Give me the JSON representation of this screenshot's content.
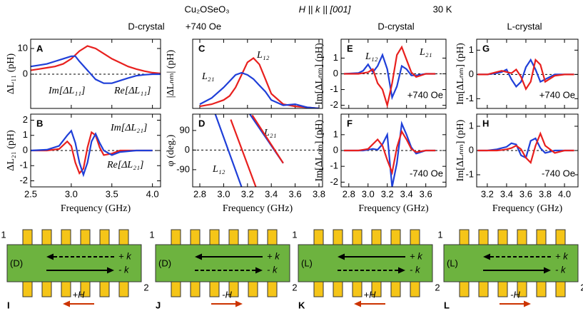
{
  "header": {
    "material": "Cu₂OSeO₃",
    "geometry": "H || k || [001]",
    "temperature": "30 K",
    "left_crystal": "D-crystal",
    "left_field": "+740 Oe",
    "middle_crystal": "D-crystal",
    "right_crystal": "L-crystal"
  },
  "chart_data": [
    {
      "type": "line",
      "label": "A",
      "ylabel": "ΔL₁₁ (pH)",
      "xlim": [
        2.5,
        4.1
      ],
      "ylim": [
        -13.3,
        13.6
      ],
      "xticks": [
        2.5,
        {
          "value": 3,
          "label": "3.0"
        },
        3.5,
        {
          "value": 4,
          "label": "4.0"
        }
      ],
      "xtick_labels": false,
      "yticks": [
        0,
        10
      ],
      "zero_line": true,
      "x": [
        2.5,
        2.6,
        2.7,
        2.8,
        2.9,
        3.0,
        3.05,
        3.1,
        3.2,
        3.3,
        3.4,
        3.5,
        3.6,
        3.7,
        3.8,
        3.9,
        4.0,
        4.1
      ],
      "series": [
        {
          "name": "Im[ΔL₁₁]",
          "color": "#e8201e",
          "values": [
            1.5,
            2,
            2.5,
            3,
            4,
            6,
            7.5,
            9,
            11,
            10,
            8,
            6,
            4.5,
            3,
            2,
            1.2,
            0.6,
            0.3
          ]
        },
        {
          "name": "Re[ΔL₁₁]",
          "color": "#1f3fd8",
          "values": [
            3,
            3.5,
            4,
            5,
            6,
            7,
            7,
            5,
            1.5,
            -2,
            -3.5,
            -3.5,
            -2.5,
            -1.5,
            -0.6,
            -0.2,
            0,
            0
          ]
        }
      ]
    },
    {
      "type": "line",
      "label": "B",
      "ylabel": "ΔL₂₁ (pH)",
      "xlabel": "Frequency (GHz)",
      "xlim": [
        2.5,
        4.1
      ],
      "ylim": [
        -2.4,
        2.4
      ],
      "xticks": [
        2.5,
        {
          "value": 3,
          "label": "3.0"
        },
        3.5,
        {
          "value": 4,
          "label": "4.0"
        }
      ],
      "xtick_labels": true,
      "yticks": [
        -2,
        -1,
        0,
        1,
        2
      ],
      "zero_line": true,
      "x": [
        2.5,
        2.7,
        2.85,
        2.95,
        3.0,
        3.05,
        3.1,
        3.15,
        3.2,
        3.25,
        3.3,
        3.35,
        3.4,
        3.5,
        3.6,
        3.8,
        4.0
      ],
      "series": [
        {
          "name": "Im[ΔL₂₁]",
          "color": "#e8201e",
          "values": [
            0,
            0,
            0.1,
            0.6,
            0.3,
            -0.8,
            -1.5,
            -1.2,
            0.2,
            1.2,
            1.0,
            0.2,
            -0.3,
            -0.2,
            0,
            0,
            0
          ]
        },
        {
          "name": "Re[ΔL₂₁]",
          "color": "#1f3fd8",
          "values": [
            0,
            0.05,
            0.3,
            1.0,
            1.3,
            0.5,
            -0.8,
            -1.6,
            -0.8,
            0.6,
            1.1,
            0.5,
            0,
            -0.3,
            -0.1,
            0,
            0
          ]
        }
      ]
    },
    {
      "type": "line",
      "label": "C",
      "ylabel": "|ΔLₙₘ| (pH)",
      "xlim": [
        2.74,
        3.83
      ],
      "ylim": [
        0,
        3.3
      ],
      "xticks": [
        2.8,
        {
          "value": 3,
          "label": "3.0"
        },
        3.2,
        3.4,
        3.6,
        3.8
      ],
      "xtick_labels": false,
      "zero_line": false,
      "x": [
        2.8,
        2.9,
        3.0,
        3.05,
        3.1,
        3.15,
        3.2,
        3.25,
        3.3,
        3.35,
        3.4,
        3.5,
        3.6,
        3.7,
        3.8
      ],
      "series": [
        {
          "name": "L₁₂",
          "color": "#e8201e",
          "values": [
            0.1,
            0.2,
            0.4,
            0.6,
            1.0,
            1.6,
            2.2,
            2.4,
            2.1,
            1.4,
            0.7,
            0.2,
            0.1,
            0.05,
            0
          ]
        },
        {
          "name": "L₂₁",
          "color": "#1f3fd8",
          "values": [
            0.2,
            0.5,
            1.0,
            1.3,
            1.6,
            1.7,
            1.6,
            1.4,
            1.1,
            0.8,
            0.4,
            0.15,
            0.2,
            0.05,
            0
          ]
        }
      ]
    },
    {
      "type": "line",
      "label": "D",
      "ylabel": "φ (deg.)",
      "xlabel": "Frequency (GHz)",
      "xlim": [
        2.74,
        3.83
      ],
      "ylim": [
        -169,
        165
      ],
      "xticks": [
        2.8,
        {
          "value": 3,
          "label": "3.0"
        },
        3.2,
        3.4,
        3.6,
        3.8
      ],
      "xtick_labels": true,
      "yticks": [
        -90,
        0,
        90
      ],
      "zero_line": true,
      "series": [
        {
          "name": "L₂₁",
          "color": "#1f3fd8",
          "x": [
            2.93,
            3.15,
            3.18,
            3.22,
            3.5
          ],
          "values": [
            165,
            -169,
            null,
            165,
            -60
          ]
        },
        {
          "name": "L₁₂",
          "color": "#e8201e",
          "x": [
            3.06,
            3.27,
            3.25,
            3.24,
            3.5
          ],
          "values": [
            140,
            -169,
            null,
            160,
            -60
          ]
        }
      ]
    },
    {
      "type": "line",
      "label": "E",
      "ylabel": "Im[ΔLₙₘ] (pH)",
      "annotation": "+740 Oe",
      "xlim": [
        2.72,
        3.81
      ],
      "ylim": [
        -2.2,
        2.2
      ],
      "xticks": [
        2.8,
        {
          "value": 3,
          "label": "3.0"
        },
        3.2,
        3.4,
        3.6
      ],
      "xtick_labels": false,
      "yticks": [
        -2,
        -1,
        0,
        1
      ],
      "zero_line": true,
      "x": [
        2.75,
        2.9,
        2.95,
        3.0,
        3.05,
        3.1,
        3.15,
        3.2,
        3.25,
        3.3,
        3.35,
        3.4,
        3.45,
        3.5,
        3.6,
        3.7
      ],
      "series": [
        {
          "name": "L₂₁",
          "color": "#1f3fd8",
          "values": [
            0,
            0.05,
            0.2,
            0.6,
            0.1,
            0.5,
            1.2,
            0.3,
            -1.5,
            -0.8,
            0.5,
            0.3,
            -0.1,
            -0.1,
            0,
            0
          ]
        },
        {
          "name": "L₁₂",
          "color": "#e8201e",
          "values": [
            0,
            0,
            0.05,
            0.1,
            0.3,
            -0.6,
            -1.0,
            -2.0,
            -0.6,
            1.2,
            1.7,
            0.9,
            0.1,
            -0.2,
            0,
            0
          ]
        }
      ]
    },
    {
      "type": "line",
      "ylabel": "Im[ΔLₙₘ] (pH)",
      "label": "F",
      "annotation": "-740 Oe",
      "xlabel": "Frequency (GHz)",
      "xlim": [
        2.72,
        3.81
      ],
      "ylim": [
        -2.3,
        2.3
      ],
      "xticks": [
        2.8,
        {
          "value": 3,
          "label": "3.0"
        },
        3.2,
        3.4,
        3.6
      ],
      "xtick_labels": true,
      "yticks": [
        -2,
        -1,
        0,
        1
      ],
      "zero_line": true,
      "x": [
        2.75,
        2.9,
        2.95,
        3.0,
        3.05,
        3.1,
        3.15,
        3.2,
        3.25,
        3.3,
        3.35,
        3.4,
        3.45,
        3.5,
        3.6,
        3.7
      ],
      "series": [
        {
          "color": "#1f3fd8",
          "values": [
            0,
            0,
            0,
            0.05,
            0.1,
            0.05,
            0.4,
            1.0,
            -2.3,
            -0.8,
            1.7,
            1.0,
            0.2,
            -0.2,
            0,
            0
          ]
        },
        {
          "color": "#e8201e",
          "values": [
            0,
            0,
            0.05,
            0.1,
            0.4,
            0.7,
            0.3,
            -0.6,
            -1.4,
            0.2,
            1.2,
            0.7,
            0.1,
            -0.1,
            0,
            0
          ]
        }
      ]
    },
    {
      "type": "line",
      "label": "G",
      "ylabel": "Im[ΔLₙₘ] (pH)",
      "annotation": "+740 Oe",
      "xlim": [
        3.09,
        4.14
      ],
      "ylim": [
        -1.4,
        1.45
      ],
      "xticks": [
        3.2,
        3.4,
        3.6,
        3.8,
        {
          "value": 4,
          "label": "4.0"
        }
      ],
      "xtick_labels": false,
      "yticks": [
        -1,
        0,
        1
      ],
      "zero_line": true,
      "x": [
        3.1,
        3.2,
        3.3,
        3.35,
        3.4,
        3.45,
        3.5,
        3.55,
        3.6,
        3.65,
        3.7,
        3.75,
        3.8,
        3.9,
        4.0,
        4.1
      ],
      "series": [
        {
          "color": "#1f3fd8",
          "values": [
            0,
            0,
            0.05,
            0.1,
            0.2,
            -0.2,
            -0.5,
            -0.3,
            0.3,
            0.6,
            0.2,
            -0.3,
            -0.2,
            0,
            0,
            0
          ]
        },
        {
          "color": "#e8201e",
          "values": [
            0,
            0,
            0.1,
            0.15,
            0.1,
            0.05,
            0.2,
            -0.1,
            -0.6,
            -0.3,
            0.6,
            0.4,
            -0.3,
            -0.05,
            0,
            0
          ]
        }
      ]
    },
    {
      "type": "line",
      "label": "H",
      "ylabel": "Im[ΔLₙₘ] (pH)",
      "annotation": "-740 Oe",
      "xlabel": "Frequency (GHz)",
      "xlim": [
        3.09,
        4.14
      ],
      "ylim": [
        -1.5,
        1.5
      ],
      "xticks": [
        3.2,
        3.4,
        3.6,
        3.8,
        {
          "value": 4,
          "label": "4.0"
        }
      ],
      "xtick_labels": true,
      "yticks": [
        -1,
        0,
        1
      ],
      "zero_line": true,
      "x": [
        3.1,
        3.2,
        3.3,
        3.35,
        3.4,
        3.45,
        3.5,
        3.55,
        3.6,
        3.65,
        3.7,
        3.75,
        3.8,
        3.9,
        4.0,
        4.1
      ],
      "series": [
        {
          "color": "#1f3fd8",
          "values": [
            0,
            0,
            0.05,
            0.1,
            0.15,
            0.3,
            0.25,
            -0.2,
            -0.3,
            0.4,
            0.5,
            0.1,
            -0.1,
            0,
            0,
            0
          ]
        },
        {
          "color": "#e8201e",
          "values": [
            0,
            0,
            0,
            0.02,
            0.05,
            0.1,
            0.2,
            0.05,
            -0.3,
            -0.5,
            0.2,
            0.7,
            0.2,
            -0.1,
            0,
            0
          ]
        }
      ]
    }
  ],
  "diagrams": [
    {
      "label": "I",
      "crystal": "(D)",
      "port1": "1",
      "port2": "2",
      "plus_k": "+ k",
      "minus_k": "- k",
      "upper_arrow": "dashed",
      "field": "+H",
      "field_dir": "left"
    },
    {
      "label": "J",
      "crystal": "(D)",
      "port1": "1",
      "port2": "2",
      "plus_k": "+ k",
      "minus_k": "- k",
      "upper_arrow": "solid",
      "field": "-H",
      "field_dir": "right"
    },
    {
      "label": "K",
      "crystal": "(L)",
      "port1": "1",
      "port2": "2",
      "plus_k": "+ k",
      "minus_k": "- k",
      "upper_arrow": "solid",
      "field": "+H",
      "field_dir": "left"
    },
    {
      "label": "L",
      "crystal": "(L)",
      "port1": "1",
      "port2": "2",
      "plus_k": "+ k",
      "minus_k": "- k",
      "upper_arrow": "dashed",
      "field": "-H",
      "field_dir": "right"
    }
  ]
}
